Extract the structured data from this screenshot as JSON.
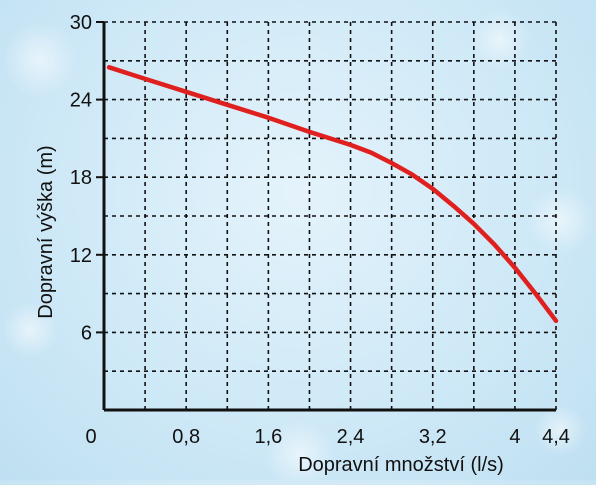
{
  "chart_data": {
    "type": "line",
    "title": "",
    "xlabel": "Dopravní množství (l/s)",
    "ylabel": "Dopravní výška (m)",
    "xlim": [
      0,
      4.4
    ],
    "ylim": [
      0,
      30
    ],
    "x_ticks": [
      {
        "value": 0,
        "label": "0"
      },
      {
        "value": 0.8,
        "label": "0,8"
      },
      {
        "value": 1.6,
        "label": "1,6"
      },
      {
        "value": 2.4,
        "label": "2,4"
      },
      {
        "value": 3.2,
        "label": "3,2"
      },
      {
        "value": 4,
        "label": "4"
      },
      {
        "value": 4.4,
        "label": "4,4"
      }
    ],
    "y_ticks": [
      {
        "value": 30,
        "label": "30"
      },
      {
        "value": 24,
        "label": "24"
      },
      {
        "value": 18,
        "label": "18"
      },
      {
        "value": 12,
        "label": "12"
      },
      {
        "value": 6,
        "label": "6"
      }
    ],
    "grid": true,
    "series": [
      {
        "color": "#e0201f",
        "x": [
          0.05,
          0.4,
          0.8,
          1.2,
          1.6,
          2.0,
          2.4,
          2.6,
          2.8,
          3.0,
          3.2,
          3.4,
          3.6,
          3.8,
          4.0,
          4.2,
          4.4
        ],
        "y": [
          26.5,
          25.6,
          24.6,
          23.6,
          22.6,
          21.5,
          20.5,
          19.9,
          19.1,
          18.2,
          17.1,
          15.8,
          14.4,
          12.8,
          11.0,
          9.0,
          6.9
        ]
      }
    ]
  }
}
